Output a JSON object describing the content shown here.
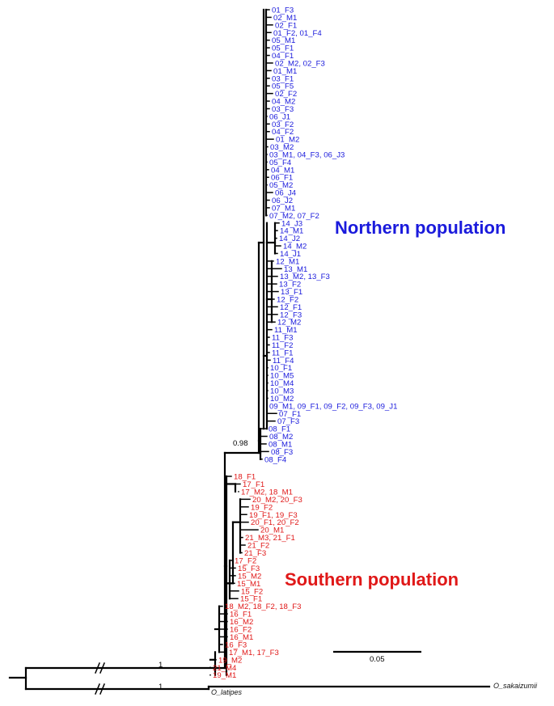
{
  "populations": {
    "northern": "Northern population",
    "southern": "Southern population",
    "north_color": "#1a1adc",
    "south_color": "#e01818"
  },
  "support_values": {
    "northern_clade": "0.98",
    "root_upper": "1",
    "root_lower": "1"
  },
  "scale_bar": {
    "label": "0.05"
  },
  "outgroups": {
    "latipes": "O_latipes",
    "sakaizumii": "O_sakaizumii"
  },
  "northern_taxa": [
    "01_F3",
    "02_M1",
    "02_F1",
    "01_F2, 01_F4",
    "05_M1",
    "05_F1",
    "04_F1",
    "02_M2, 02_F3",
    "01_M1",
    "03_F1",
    "05_F5",
    "02_F2",
    "04_M2",
    "03_F3",
    "06_J1",
    "03_F2",
    "04_F2",
    "01_M2",
    "03_M2",
    "03_M1, 04_F3, 06_J3",
    "05_F4",
    "04_M1",
    "06_F1",
    "05_M2",
    "06_J4",
    "06_J2",
    "07_M1",
    "07_M2, 07_F2",
    "14_J3",
    "14_M1",
    "14_J2",
    "14_M2",
    "14_J1",
    "12_M1",
    "13_M1",
    "13_M2, 13_F3",
    "13_F2",
    "13_F1",
    "12_F2",
    "12_F1",
    "12_F3",
    "12_M2",
    "11_M1",
    "11_F3",
    "11_F2",
    "11_F1",
    "11_F4",
    "10_F1",
    "10_M5",
    "10_M4",
    "10_M3",
    "10_M2",
    "09_M1, 09_F1, 09_F2, 09_F3, 09_J1",
    "07_F1",
    "07_F3",
    "08_F1",
    "08_M2",
    "08_M1",
    "08_F3",
    "08_F4"
  ],
  "southern_taxa": [
    "18_F1",
    "17_F1",
    "17_M2, 18_M1",
    "20_M2, 20_F3",
    "19_F2",
    "19_F1, 19_F3",
    "20_F1, 20_F2",
    "20_M1",
    "21_M3, 21_F1",
    "21_F2",
    "21_F3",
    "17_F2",
    "15_F3",
    "15_M2",
    "15_M1",
    "15_F2",
    "15_F1",
    "18_M2, 18_F2, 18_F3",
    "16_F1",
    "16_M2",
    "16_F2",
    "16_M1",
    "16_F3",
    "17_M1, 17_F3",
    "19_M2",
    "21_M4",
    "19_M1"
  ]
}
